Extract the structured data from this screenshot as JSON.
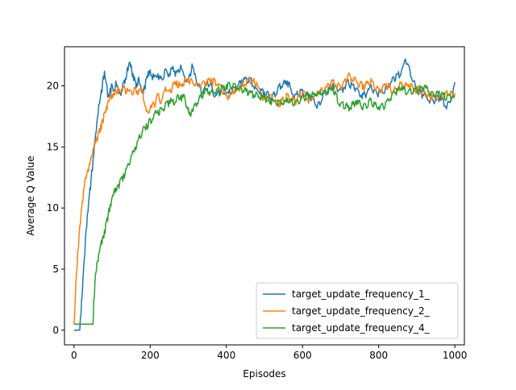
{
  "chart_data": {
    "type": "line",
    "title": "",
    "xlabel": "Episodes",
    "ylabel": "Average Q Value",
    "xlim": [
      -25,
      1025
    ],
    "ylim": [
      -1.2,
      23.2
    ],
    "x_ticks": [
      0,
      200,
      400,
      600,
      800,
      1000
    ],
    "y_ticks": [
      0,
      5,
      10,
      15,
      20
    ],
    "grid": false,
    "legend_position": "bottom-right",
    "series": [
      {
        "name": "target_update_frequency_1_",
        "color": "#1f77b4",
        "x": [
          0,
          15,
          20,
          25,
          30,
          35,
          40,
          45,
          50,
          55,
          60,
          65,
          70,
          75,
          80,
          85,
          90,
          95,
          100,
          105,
          110,
          115,
          120,
          125,
          130,
          135,
          140,
          145,
          150,
          155,
          160,
          165,
          170,
          175,
          180,
          185,
          190,
          195,
          200,
          210,
          220,
          230,
          240,
          250,
          260,
          270,
          280,
          290,
          300,
          310,
          320,
          330,
          340,
          350,
          360,
          370,
          380,
          390,
          400,
          420,
          440,
          460,
          480,
          500,
          520,
          540,
          560,
          580,
          600,
          620,
          640,
          660,
          680,
          700,
          720,
          740,
          760,
          780,
          800,
          820,
          840,
          860,
          870,
          880,
          900,
          920,
          940,
          960,
          980,
          990,
          1000
        ],
        "y": [
          0,
          0,
          2.5,
          5,
          7.5,
          9.5,
          11,
          12.5,
          14,
          15.5,
          17,
          18.5,
          19.2,
          20.3,
          21.2,
          20.2,
          19.3,
          19.8,
          20.1,
          19.6,
          20.4,
          19.9,
          19.5,
          19.7,
          20.3,
          20.6,
          21.5,
          21.9,
          21.7,
          21.0,
          20.5,
          20.2,
          20.7,
          20.0,
          19.7,
          20.0,
          20.6,
          21.2,
          21.3,
          20.7,
          21.0,
          20.6,
          21.4,
          21.0,
          21.6,
          21.1,
          21.7,
          20.8,
          20.4,
          21.8,
          20.6,
          20.0,
          19.7,
          20.4,
          20.2,
          19.1,
          19.6,
          20.0,
          19.4,
          19.9,
          20.5,
          20.7,
          19.8,
          19.5,
          19.2,
          20.2,
          20.4,
          19.3,
          19.7,
          19.2,
          18.5,
          19.6,
          20.2,
          19.7,
          20.5,
          19.8,
          19.3,
          20.1,
          19.5,
          20.0,
          20.7,
          21.3,
          22.2,
          21.6,
          19.7,
          19.4,
          18.9,
          19.2,
          18.5,
          19.0,
          20.3
        ]
      },
      {
        "name": "target_update_frequency_2_",
        "color": "#ff7f0e",
        "x": [
          0,
          5,
          10,
          15,
          20,
          25,
          30,
          35,
          40,
          45,
          50,
          55,
          60,
          65,
          70,
          75,
          80,
          85,
          90,
          95,
          100,
          105,
          110,
          115,
          120,
          130,
          140,
          150,
          160,
          170,
          180,
          190,
          200,
          210,
          220,
          230,
          240,
          250,
          260,
          270,
          280,
          290,
          300,
          320,
          340,
          360,
          380,
          400,
          420,
          440,
          460,
          480,
          500,
          520,
          540,
          560,
          580,
          600,
          620,
          640,
          660,
          680,
          700,
          720,
          740,
          760,
          780,
          800,
          820,
          840,
          860,
          880,
          900,
          920,
          940,
          960,
          980,
          1000
        ],
        "y": [
          0.5,
          4,
          6.5,
          8.5,
          10,
          11.5,
          12.5,
          13,
          13.6,
          14.2,
          14.8,
          15.4,
          15.8,
          16.2,
          16.8,
          17.2,
          17.8,
          18.3,
          18.8,
          19.1,
          19.3,
          19.4,
          19.6,
          19.8,
          19.6,
          19.9,
          19.8,
          19.6,
          19.9,
          19.7,
          19.7,
          17.9,
          18.2,
          18.6,
          19.3,
          18.8,
          19.9,
          19.6,
          20.2,
          20.4,
          20.1,
          20.5,
          20.6,
          20.2,
          20.4,
          20.6,
          20.2,
          19.3,
          19.6,
          20.1,
          20.7,
          20.3,
          19.0,
          19.2,
          18.7,
          19.3,
          18.9,
          19.5,
          19.0,
          19.6,
          19.9,
          20.5,
          19.9,
          21.0,
          20.5,
          20.1,
          20.6,
          19.8,
          20.2,
          19.7,
          20.3,
          20.1,
          19.9,
          19.6,
          19.3,
          19.2,
          19.5,
          19.4
        ]
      },
      {
        "name": "target_update_frequency_4_",
        "color": "#2ca02c",
        "x": [
          0,
          50,
          52,
          55,
          60,
          65,
          70,
          75,
          80,
          85,
          90,
          95,
          100,
          105,
          110,
          115,
          120,
          130,
          140,
          150,
          160,
          170,
          180,
          190,
          200,
          210,
          220,
          230,
          240,
          250,
          260,
          270,
          280,
          290,
          300,
          305,
          310,
          320,
          330,
          340,
          350,
          360,
          380,
          400,
          420,
          440,
          460,
          480,
          500,
          520,
          540,
          560,
          580,
          600,
          620,
          640,
          660,
          680,
          700,
          720,
          740,
          760,
          780,
          800,
          820,
          840,
          860,
          880,
          900,
          920,
          940,
          960,
          980,
          1000
        ],
        "y": [
          0.5,
          0.5,
          2.5,
          4,
          5.5,
          6.3,
          7.0,
          7.6,
          8.2,
          8.9,
          9.6,
          10.3,
          10.9,
          11.4,
          11.6,
          11.9,
          12.2,
          12.8,
          13.5,
          14.3,
          15.0,
          15.8,
          16.4,
          16.9,
          17.3,
          17.7,
          18.0,
          18.2,
          18.6,
          18.8,
          18.9,
          19.1,
          19.2,
          19.2,
          18.2,
          17.6,
          18.1,
          18.6,
          19.2,
          19.6,
          19.8,
          19.5,
          19.9,
          20.1,
          20.2,
          19.8,
          19.6,
          19.4,
          19.1,
          18.9,
          18.8,
          19.0,
          18.7,
          19.2,
          19.3,
          19.5,
          19.7,
          19.9,
          18.6,
          18.4,
          18.8,
          18.5,
          18.9,
          18.3,
          18.7,
          19.6,
          19.9,
          19.7,
          19.8,
          20.0,
          19.5,
          19.4,
          19.3,
          19.2
        ]
      }
    ]
  }
}
